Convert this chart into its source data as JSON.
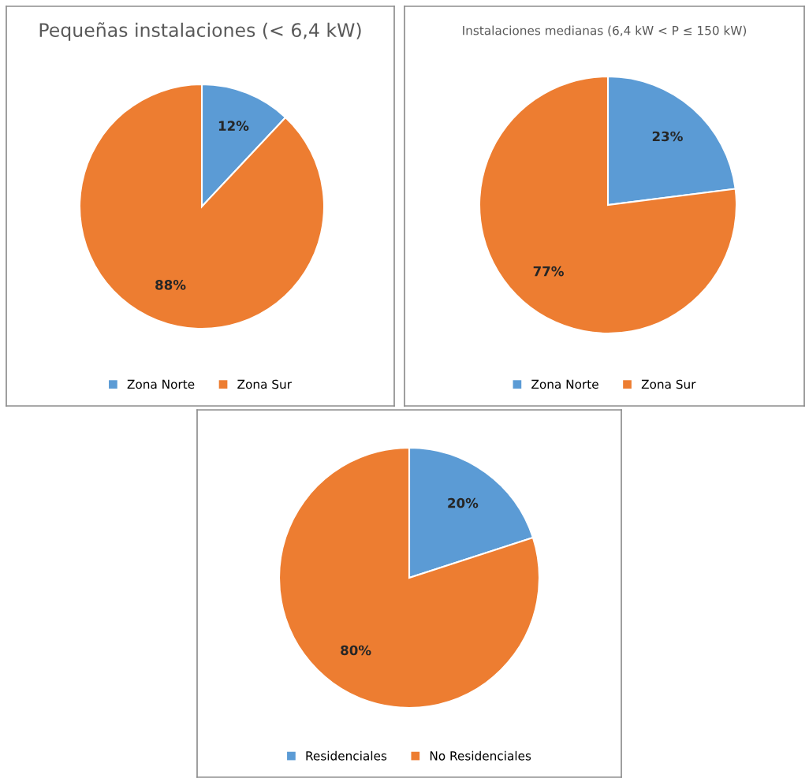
{
  "chart_data": [
    {
      "type": "pie",
      "title": "Pequeñas instalaciones (< 6,4 kW)",
      "categories": [
        "Zona Norte",
        "Zona Sur"
      ],
      "values": [
        12,
        88
      ],
      "colors": [
        "#5b9bd5",
        "#ed7d31"
      ],
      "value_labels": [
        "12%",
        "88%"
      ],
      "legend": "bottom"
    },
    {
      "type": "pie",
      "title": "Instalaciones medianas (6,4 kW < P ≤ 150 kW)",
      "categories": [
        "Zona Norte",
        "Zona Sur"
      ],
      "values": [
        23,
        77
      ],
      "colors": [
        "#5b9bd5",
        "#ed7d31"
      ],
      "value_labels": [
        "23%",
        "77%"
      ],
      "legend": "bottom"
    },
    {
      "type": "pie",
      "categories": [
        "Residenciales",
        "No Residenciales"
      ],
      "values": [
        20,
        80
      ],
      "colors": [
        "#5b9bd5",
        "#ed7d31"
      ],
      "value_labels": [
        "20%",
        "80%"
      ],
      "legend": "bottom"
    }
  ]
}
